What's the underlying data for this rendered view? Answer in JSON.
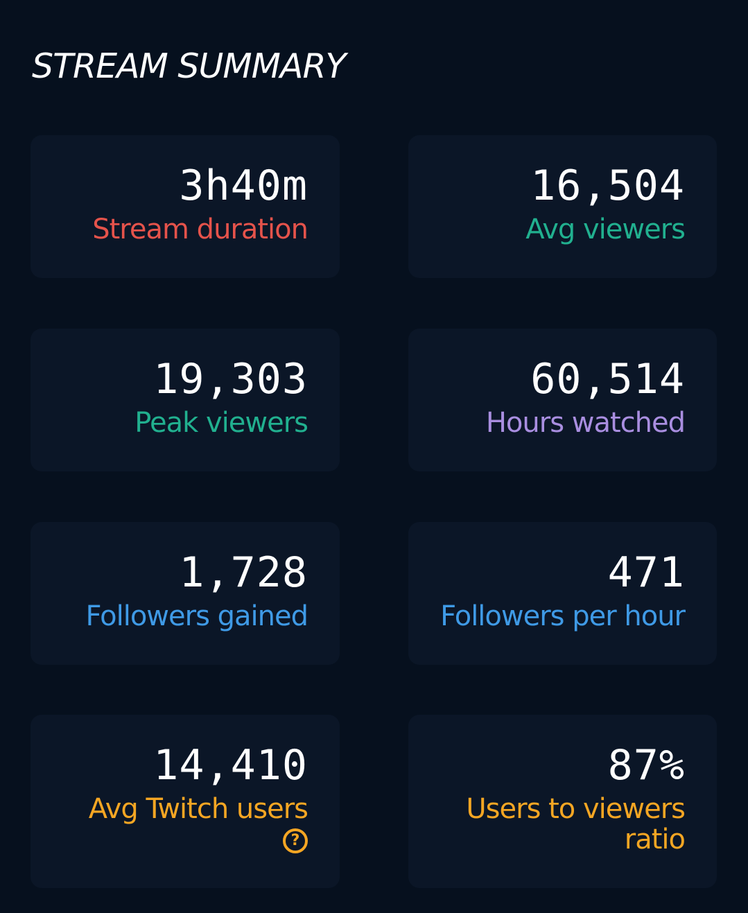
{
  "header": {
    "title": "STREAM SUMMARY"
  },
  "colors": {
    "background": "#06101e",
    "card": "#0b1627",
    "red": "#e5534b",
    "green": "#21b08f",
    "purple": "#a98ee0",
    "blue": "#3f9ae6",
    "orange": "#f5a623"
  },
  "stats": [
    {
      "value": "3h40m",
      "label": "Stream duration",
      "color": "#e5534b"
    },
    {
      "value": "16,504",
      "label": "Avg viewers",
      "color": "#21b08f"
    },
    {
      "value": "19,303",
      "label": "Peak viewers",
      "color": "#21b08f"
    },
    {
      "value": "60,514",
      "label": "Hours watched",
      "color": "#a98ee0"
    },
    {
      "value": "1,728",
      "label": "Followers gained",
      "color": "#3f9ae6"
    },
    {
      "value": "471",
      "label": "Followers per hour",
      "color": "#3f9ae6"
    },
    {
      "value": "14,410",
      "label": "Avg Twitch users",
      "color": "#f5a623",
      "help_icon": "question-circle-icon"
    },
    {
      "value": "87%",
      "label": "Users to viewers ratio",
      "color": "#f5a623"
    }
  ]
}
